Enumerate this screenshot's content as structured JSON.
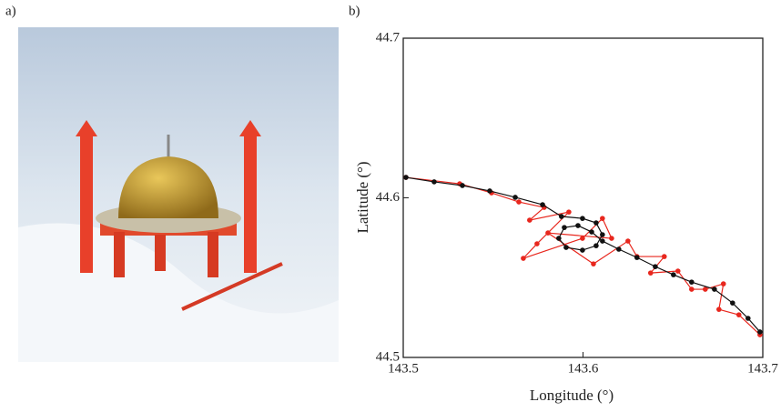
{
  "panel_labels": [
    "a)",
    "b)"
  ],
  "chart_data": {
    "type": "line",
    "xlabel": "Longitude (°)",
    "ylabel": "Latitude (°)",
    "xlim": [
      143.5,
      143.7
    ],
    "ylim": [
      44.5,
      44.7
    ],
    "xticks": [
      143.5,
      143.6,
      143.7
    ],
    "yticks": [
      44.5,
      44.6,
      44.7
    ],
    "series": [
      {
        "color": "#e8271e",
        "x": [
          143.5015,
          143.5314,
          143.5491,
          143.5643,
          143.5784,
          143.5703,
          143.5921,
          143.5744,
          143.5668,
          143.5997,
          143.6108,
          143.6159,
          143.5805,
          143.6058,
          143.625,
          143.63,
          143.6452,
          143.6376,
          143.6528,
          143.6604,
          143.668,
          143.6781,
          143.6756,
          143.6867,
          143.6984
        ],
        "values": [
          44.6128,
          44.6088,
          44.6031,
          44.5974,
          44.594,
          44.586,
          44.5911,
          44.5712,
          44.5621,
          44.5746,
          44.5871,
          44.5746,
          44.578,
          44.5586,
          44.5729,
          44.5632,
          44.5632,
          44.5529,
          44.5541,
          44.5427,
          44.5427,
          44.5461,
          44.5301,
          44.5267,
          44.5142
        ]
      },
      {
        "color": "#111111",
        "x": [
          143.5015,
          143.5172,
          143.5329,
          143.5481,
          143.5623,
          143.5775,
          143.588,
          143.5997,
          143.6073,
          143.6108,
          143.6073,
          143.5997,
          143.5906,
          143.5865,
          143.5896,
          143.5972,
          143.6048,
          143.6108,
          143.6199,
          143.63,
          143.6402,
          143.6503,
          143.6604,
          143.6731,
          143.6832,
          143.6918,
          143.6984
        ],
        "values": [
          44.6128,
          44.61,
          44.6077,
          44.6043,
          44.6003,
          44.5957,
          44.5883,
          44.5871,
          44.5843,
          44.5769,
          44.57,
          44.5672,
          44.5689,
          44.5746,
          44.5814,
          44.5826,
          44.5786,
          44.5729,
          44.5678,
          44.5626,
          44.5569,
          44.5518,
          44.5472,
          44.5427,
          44.5341,
          44.5245,
          44.516
        ]
      }
    ]
  }
}
